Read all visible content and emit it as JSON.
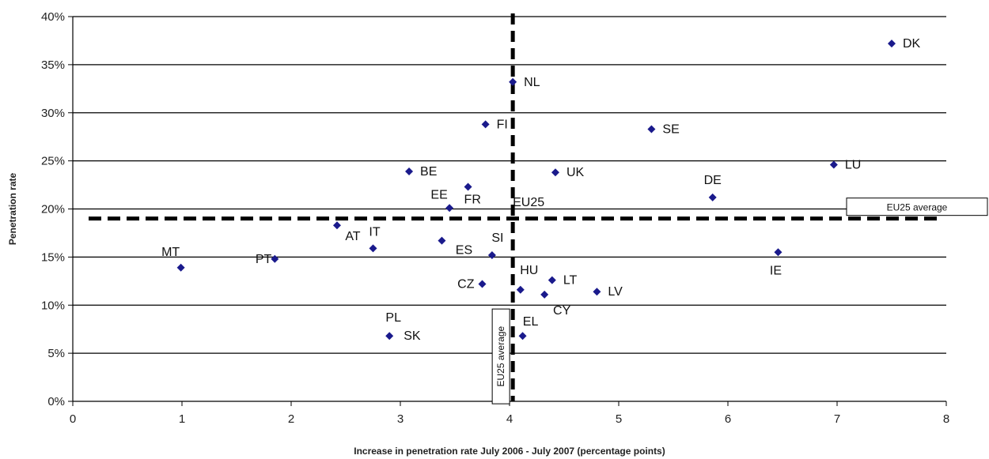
{
  "chart_data": {
    "type": "scatter",
    "xlabel": "Increase in penetration rate July 2006 - July 2007 (percentage points)",
    "ylabel": "Penetration rate",
    "xlim": [
      0,
      8
    ],
    "ylim": [
      0,
      40
    ],
    "x_ticks": [
      "0",
      "1",
      "2",
      "3",
      "4",
      "5",
      "6",
      "7",
      "8"
    ],
    "y_ticks": [
      "0%",
      "5%",
      "10%",
      "15%",
      "20%",
      "25%",
      "30%",
      "35%",
      "40%"
    ],
    "grid": "horizontal",
    "marker_color": "#1a1a8c",
    "points": [
      {
        "label": "DK",
        "x": 7.5,
        "y": 37.2
      },
      {
        "label": "NL",
        "x": 4.03,
        "y": 33.2
      },
      {
        "label": "FI",
        "x": 3.78,
        "y": 28.8
      },
      {
        "label": "SE",
        "x": 5.3,
        "y": 28.3
      },
      {
        "label": "LU",
        "x": 6.97,
        "y": 24.6
      },
      {
        "label": "BE",
        "x": 3.08,
        "y": 23.9
      },
      {
        "label": "UK",
        "x": 4.42,
        "y": 23.8
      },
      {
        "label": "FR",
        "x": 3.62,
        "y": 22.3
      },
      {
        "label": "DE",
        "x": 5.86,
        "y": 21.2
      },
      {
        "label": "EE",
        "x": 3.45,
        "y": 20.1
      },
      {
        "label": "AT",
        "x": 2.42,
        "y": 18.3
      },
      {
        "label": "ES",
        "x": 3.38,
        "y": 16.7
      },
      {
        "label": "IT",
        "x": 2.75,
        "y": 15.9
      },
      {
        "label": "IE",
        "x": 6.46,
        "y": 15.5
      },
      {
        "label": "SI",
        "x": 3.84,
        "y": 15.2
      },
      {
        "label": "PT",
        "x": 1.85,
        "y": 14.8
      },
      {
        "label": "MT",
        "x": 0.99,
        "y": 13.9
      },
      {
        "label": "LT",
        "x": 4.39,
        "y": 12.6
      },
      {
        "label": "CZ",
        "x": 3.75,
        "y": 12.2
      },
      {
        "label": "HU",
        "x": 4.1,
        "y": 11.6
      },
      {
        "label": "LV",
        "x": 4.8,
        "y": 11.4
      },
      {
        "label": "CY",
        "x": 4.32,
        "y": 11.1
      },
      {
        "label": "SK",
        "x": 2.9,
        "y": 6.8
      },
      {
        "label": "PL",
        "x": 2.9,
        "y": 6.8
      },
      {
        "label": "EL",
        "x": 4.12,
        "y": 6.8
      }
    ],
    "reference_lines": {
      "x_average": {
        "value": 4.03,
        "label": "EU25 average"
      },
      "y_average": {
        "value": 19.0,
        "label": "EU25 average"
      },
      "intersection_label": "EU25"
    }
  }
}
